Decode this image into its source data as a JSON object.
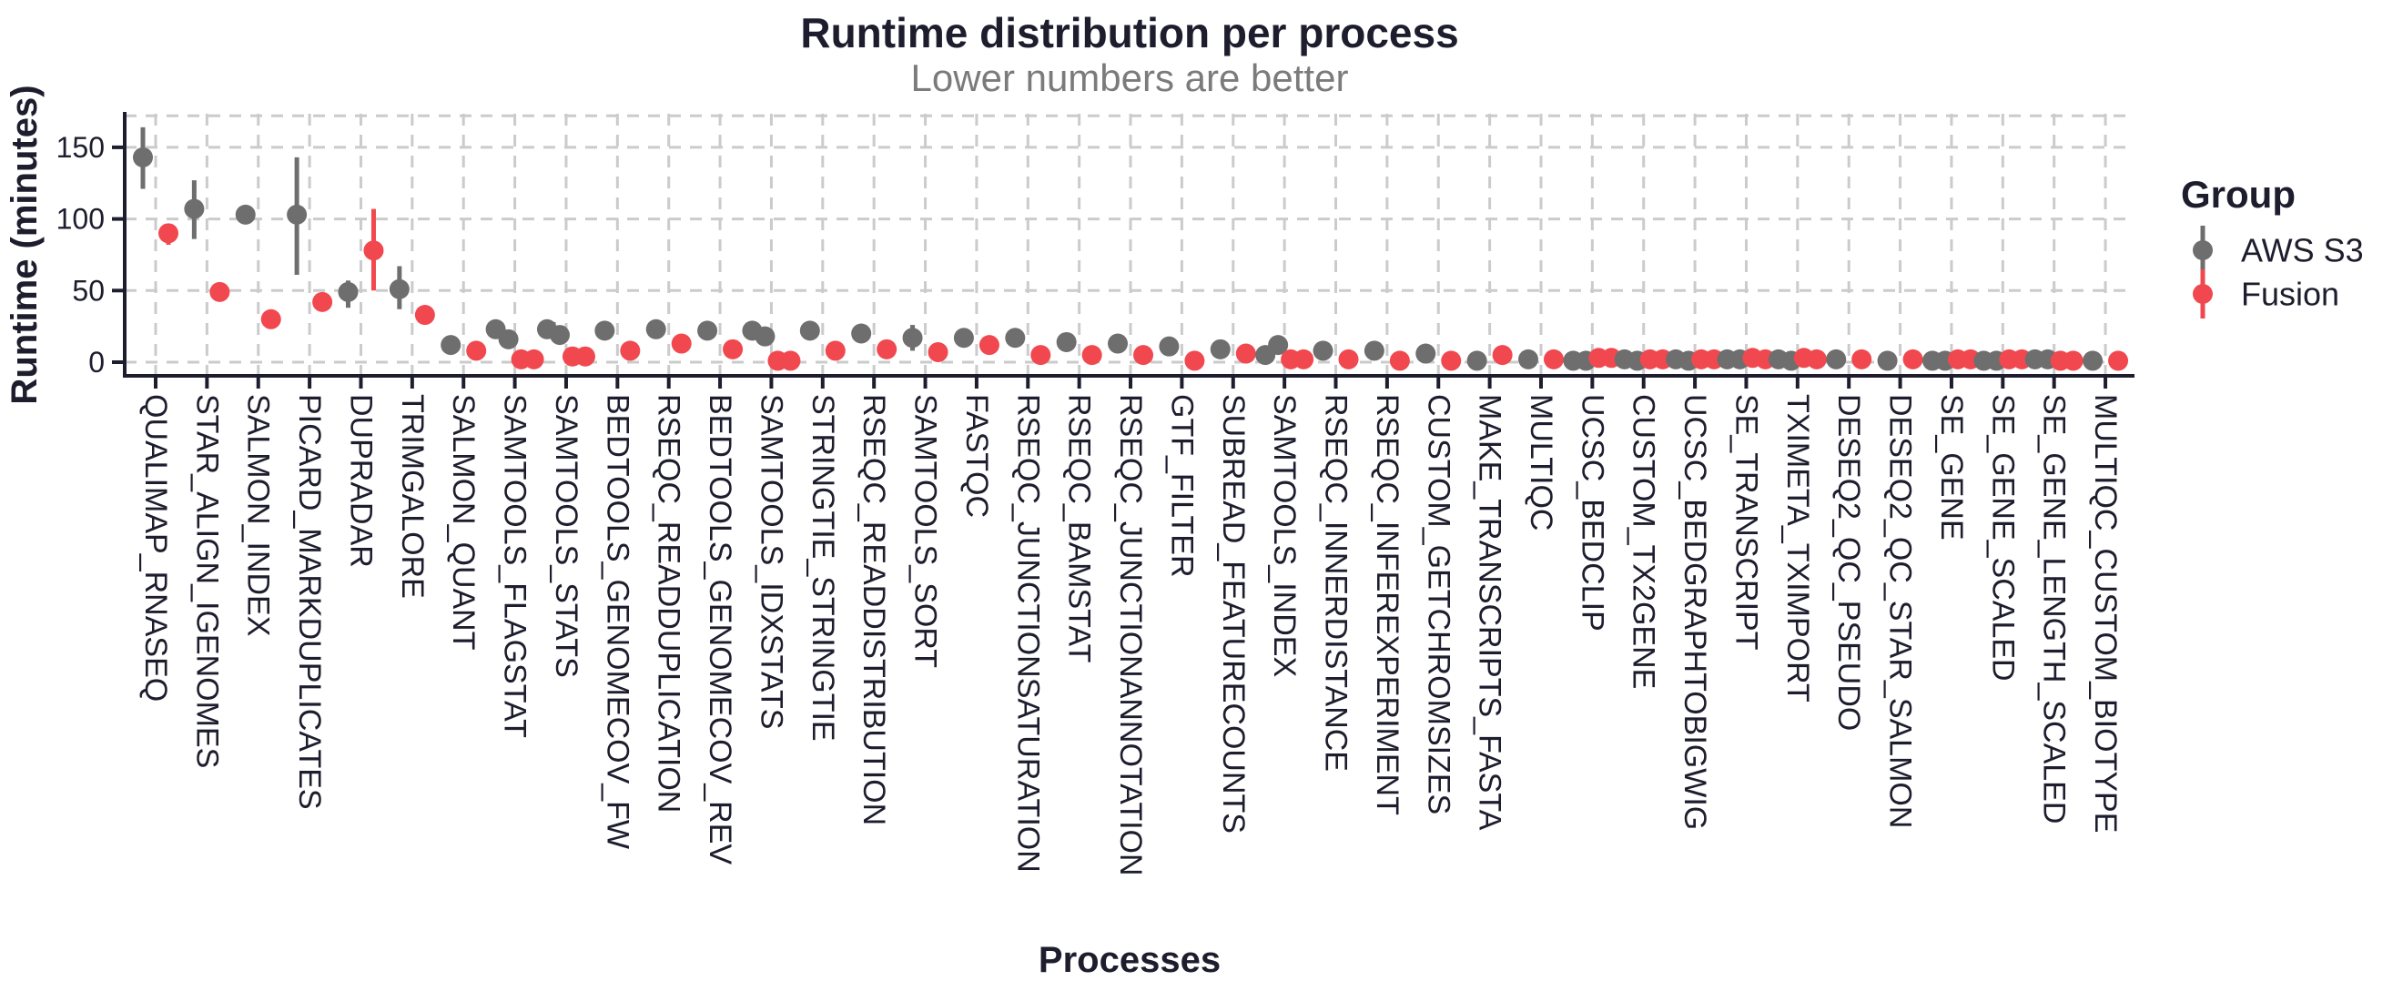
{
  "chart_data": {
    "type": "pointrange",
    "title": "Runtime distribution per process",
    "subtitle": "Lower numbers are better",
    "xlabel": "Processes",
    "ylabel": "Runtime (minutes)",
    "yticks": [
      0,
      50,
      100,
      150
    ],
    "ylim": [
      -9,
      173
    ],
    "grid": "dashed",
    "legend": {
      "title": "Group",
      "position": "right",
      "entries": [
        {
          "label": "AWS S3",
          "color": "#6e6e6e"
        },
        {
          "label": "Fusion",
          "color": "#f1484f"
        }
      ]
    },
    "colors": {
      "grid": "#cbcbcb",
      "axis": "#1d1d2e",
      "subtitle": "#7b7b7b"
    },
    "processes": [
      {
        "name": "QUALIMAP_RNASEQ",
        "aws": {
          "pts": [
            143
          ],
          "range": [
            121,
            164
          ]
        },
        "fusion": {
          "pts": [
            90
          ],
          "range": [
            82,
            96
          ]
        }
      },
      {
        "name": "STAR_ALIGN_IGENOMES",
        "aws": {
          "pts": [
            107
          ],
          "range": [
            86,
            127
          ]
        },
        "fusion": {
          "pts": [
            49
          ]
        }
      },
      {
        "name": "SALMON_INDEX",
        "aws": {
          "pts": [
            103
          ]
        },
        "fusion": {
          "pts": [
            30
          ]
        }
      },
      {
        "name": "PICARD_MARKDUPLICATES",
        "aws": {
          "pts": [
            103
          ],
          "range": [
            61,
            143
          ]
        },
        "fusion": {
          "pts": [
            42
          ]
        }
      },
      {
        "name": "DUPRADAR",
        "aws": {
          "pts": [
            49
          ],
          "range": [
            38,
            57
          ]
        },
        "fusion": {
          "pts": [
            78
          ],
          "range": [
            50,
            107
          ]
        }
      },
      {
        "name": "TRIMGALORE",
        "aws": {
          "pts": [
            51
          ],
          "range": [
            37,
            67
          ]
        },
        "fusion": {
          "pts": [
            33
          ]
        }
      },
      {
        "name": "SALMON_QUANT",
        "aws": {
          "pts": [
            12
          ]
        },
        "fusion": {
          "pts": [
            8
          ]
        }
      },
      {
        "name": "SAMTOOLS_FLAGSTAT",
        "aws": {
          "pts": [
            23,
            16
          ]
        },
        "fusion": {
          "pts": [
            2,
            2
          ]
        }
      },
      {
        "name": "SAMTOOLS_STATS",
        "aws": {
          "pts": [
            23,
            19
          ],
          "range": [
            17,
            28
          ]
        },
        "fusion": {
          "pts": [
            4,
            4
          ]
        }
      },
      {
        "name": "BEDTOOLS_GENOMECOV_FW",
        "aws": {
          "pts": [
            22
          ]
        },
        "fusion": {
          "pts": [
            8
          ]
        }
      },
      {
        "name": "RSEQC_READDUPLICATION",
        "aws": {
          "pts": [
            23
          ]
        },
        "fusion": {
          "pts": [
            13
          ]
        }
      },
      {
        "name": "BEDTOOLS_GENOMECOV_REV",
        "aws": {
          "pts": [
            22
          ]
        },
        "fusion": {
          "pts": [
            9
          ]
        }
      },
      {
        "name": "SAMTOOLS_IDXSTATS",
        "aws": {
          "pts": [
            22,
            18
          ]
        },
        "fusion": {
          "pts": [
            1,
            1
          ]
        }
      },
      {
        "name": "STRINGTIE_STRINGTIE",
        "aws": {
          "pts": [
            22
          ]
        },
        "fusion": {
          "pts": [
            8
          ]
        }
      },
      {
        "name": "RSEQC_READDISTRIBUTION",
        "aws": {
          "pts": [
            20
          ]
        },
        "fusion": {
          "pts": [
            9
          ]
        }
      },
      {
        "name": "SAMTOOLS_SORT",
        "aws": {
          "pts": [
            17
          ],
          "range": [
            8,
            26
          ]
        },
        "fusion": {
          "pts": [
            7
          ]
        }
      },
      {
        "name": "FASTQC",
        "aws": {
          "pts": [
            17
          ]
        },
        "fusion": {
          "pts": [
            12
          ]
        }
      },
      {
        "name": "RSEQC_JUNCTIONSATURATION",
        "aws": {
          "pts": [
            17
          ]
        },
        "fusion": {
          "pts": [
            5
          ]
        }
      },
      {
        "name": "RSEQC_BAMSTAT",
        "aws": {
          "pts": [
            14
          ]
        },
        "fusion": {
          "pts": [
            5
          ]
        }
      },
      {
        "name": "RSEQC_JUNCTIONANNOTATION",
        "aws": {
          "pts": [
            13
          ]
        },
        "fusion": {
          "pts": [
            5
          ]
        }
      },
      {
        "name": "GTF_FILTER",
        "aws": {
          "pts": [
            11
          ]
        },
        "fusion": {
          "pts": [
            1
          ]
        }
      },
      {
        "name": "SUBREAD_FEATURECOUNTS",
        "aws": {
          "pts": [
            9
          ]
        },
        "fusion": {
          "pts": [
            6
          ]
        }
      },
      {
        "name": "SAMTOOLS_INDEX",
        "aws": {
          "pts": [
            5,
            12
          ]
        },
        "fusion": {
          "pts": [
            2,
            2
          ]
        }
      },
      {
        "name": "RSEQC_INNERDISTANCE",
        "aws": {
          "pts": [
            8
          ]
        },
        "fusion": {
          "pts": [
            2
          ]
        }
      },
      {
        "name": "RSEQC_INFEREXPERIMENT",
        "aws": {
          "pts": [
            8
          ]
        },
        "fusion": {
          "pts": [
            1
          ]
        }
      },
      {
        "name": "CUSTOM_GETCHROMSIZES",
        "aws": {
          "pts": [
            6
          ]
        },
        "fusion": {
          "pts": [
            1
          ]
        }
      },
      {
        "name": "MAKE_TRANSCRIPTS_FASTA",
        "aws": {
          "pts": [
            1
          ]
        },
        "fusion": {
          "pts": [
            5
          ]
        }
      },
      {
        "name": "MULTIQC",
        "aws": {
          "pts": [
            2
          ]
        },
        "fusion": {
          "pts": [
            2
          ]
        }
      },
      {
        "name": "UCSC_BEDCLIP",
        "aws": {
          "pts": [
            1,
            1
          ]
        },
        "fusion": {
          "pts": [
            3,
            3
          ]
        }
      },
      {
        "name": "CUSTOM_TX2GENE",
        "aws": {
          "pts": [
            2,
            1
          ]
        },
        "fusion": {
          "pts": [
            2,
            2
          ]
        }
      },
      {
        "name": "UCSC_BEDGRAPHTOBIGWIG",
        "aws": {
          "pts": [
            2,
            1
          ]
        },
        "fusion": {
          "pts": [
            2,
            2
          ]
        }
      },
      {
        "name": "SE_TRANSCRIPT",
        "aws": {
          "pts": [
            2,
            2
          ]
        },
        "fusion": {
          "pts": [
            3,
            2
          ]
        }
      },
      {
        "name": "TXIMETA_TXIMPORT",
        "aws": {
          "pts": [
            2,
            1
          ]
        },
        "fusion": {
          "pts": [
            3,
            2
          ]
        }
      },
      {
        "name": "DESEQ2_QC_PSEUDO",
        "aws": {
          "pts": [
            2
          ]
        },
        "fusion": {
          "pts": [
            2
          ]
        }
      },
      {
        "name": "DESEQ2_QC_STAR_SALMON",
        "aws": {
          "pts": [
            1
          ]
        },
        "fusion": {
          "pts": [
            2
          ]
        }
      },
      {
        "name": "SE_GENE",
        "aws": {
          "pts": [
            1,
            1
          ]
        },
        "fusion": {
          "pts": [
            2,
            2
          ]
        }
      },
      {
        "name": "SE_GENE_SCALED",
        "aws": {
          "pts": [
            1,
            1
          ]
        },
        "fusion": {
          "pts": [
            2,
            2
          ]
        }
      },
      {
        "name": "SE_GENE_LENGTH_SCALED",
        "aws": {
          "pts": [
            2,
            2
          ]
        },
        "fusion": {
          "pts": [
            1,
            1
          ]
        }
      },
      {
        "name": "MULTIQC_CUSTOM_BIOTYPE",
        "aws": {
          "pts": [
            1
          ]
        },
        "fusion": {
          "pts": [
            1
          ]
        }
      }
    ]
  }
}
